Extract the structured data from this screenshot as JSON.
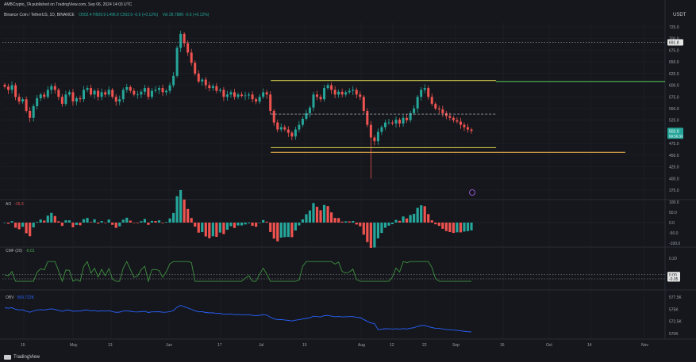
{
  "header": {
    "publisher": "AMBCrypto_TA published on TradingView.com, Sep 06, 2024 14:03 UTC",
    "symbol": "Binance Coin / TetherUS, 1D, BINANCE",
    "ohlc": "O502.4 H509.9 L496.9 C502.0 -0.6 (+0.12%)",
    "volume": "Vol 28.788K -0.6 (+0.12%)"
  },
  "axis_unit": "USDT",
  "brand": "TradingView",
  "colors": {
    "background": "#15171c",
    "up": "#26a69a",
    "down": "#ef5350",
    "range_line": "#c9c34a",
    "resistance_line": "#4caf50",
    "support_line": "#e0a84a",
    "cmf_line": "#3f8f3f",
    "obv_line": "#2962ff"
  },
  "chart_data": [
    {
      "type": "candlestick",
      "title": "Binance Coin / TetherUS, 1D",
      "ylim": [
        375,
        725
      ],
      "y_ticks": [
        725,
        700,
        675,
        650,
        625,
        600,
        575,
        550,
        525,
        500,
        475,
        450,
        425,
        400,
        375
      ],
      "price_labels": [
        {
          "text": "691.8",
          "value": 691.8,
          "style": "white"
        },
        {
          "text": "502.0",
          "value": 502.0,
          "style": "green"
        },
        {
          "text": "09:56:33",
          "value": 496.0,
          "style": "green-sub"
        }
      ],
      "x_labels": [
        "15",
        "May",
        "13",
        "Jun",
        "17",
        "Jul",
        "15",
        "Aug",
        "12",
        "22",
        "Sep",
        "16",
        "Oct",
        "14",
        "Nov"
      ],
      "closes": [
        597,
        590,
        600,
        575,
        565,
        570,
        545,
        530,
        555,
        572,
        580,
        575,
        590,
        598,
        590,
        575,
        560,
        580,
        585,
        565,
        572,
        570,
        590,
        594,
        580,
        588,
        575,
        585,
        580,
        590,
        575,
        565,
        570,
        590,
        596,
        588,
        580,
        580,
        586,
        594,
        575,
        588,
        590,
        594,
        585,
        588,
        600,
        620,
        680,
        710,
        690,
        670,
        648,
        625,
        608,
        612,
        600,
        594,
        598,
        588,
        590,
        575,
        580,
        585,
        575,
        580,
        577,
        578,
        580,
        570,
        565,
        575,
        585,
        580,
        545,
        520,
        505,
        510,
        505,
        498,
        490,
        505,
        515,
        528,
        540,
        552,
        580,
        575,
        570,
        594,
        600,
        590,
        580,
        586,
        580,
        585,
        588,
        590,
        580,
        575,
        545,
        515,
        488,
        480,
        500,
        510,
        520,
        520,
        518,
        526,
        518,
        530,
        525,
        540,
        550,
        575,
        590,
        594,
        575,
        560,
        550,
        548,
        540,
        534,
        530,
        525,
        522,
        515,
        510,
        505,
        502
      ],
      "horizontal_lines": [
        {
          "value": 691.8,
          "style": "dotted",
          "color": "#9aa0a6"
        },
        {
          "value": 610,
          "style": "solid",
          "color": "#c9c34a",
          "from": 0.405,
          "to": 0.745
        },
        {
          "value": 608,
          "style": "solid",
          "color": "#4caf50",
          "from": 0.745,
          "to": 1.0
        },
        {
          "value": 538,
          "style": "dashed",
          "color": "#c9ccd3",
          "from": 0.405,
          "to": 0.745
        },
        {
          "value": 466,
          "style": "solid",
          "color": "#c9c34a",
          "from": 0.405,
          "to": 0.745
        },
        {
          "value": 456,
          "style": "solid",
          "color": "#e0a84a",
          "from": 0.405,
          "to": 0.94
        }
      ]
    },
    {
      "type": "bar",
      "title": "AO",
      "value_label": "-15.3",
      "ylim": [
        -100,
        100
      ],
      "y_ticks": [
        "100.0",
        "50.0",
        "0.0",
        "-50.0",
        "-100.0"
      ],
      "values_shape": "awesome-oscillator-histogram"
    },
    {
      "type": "line",
      "title": "CMF (20)",
      "value_label": "-0.01",
      "ylim": [
        -0.2,
        0.25
      ],
      "y_ticks": [
        "0.20",
        "0.00",
        "-0.05"
      ],
      "price_labels": [
        "0.00",
        "-0.05"
      ]
    },
    {
      "type": "line",
      "title": "OBV",
      "value_label": "569.722K",
      "y_ticks": [
        "577.5K",
        "575K",
        "572.5K",
        "570K"
      ]
    }
  ]
}
